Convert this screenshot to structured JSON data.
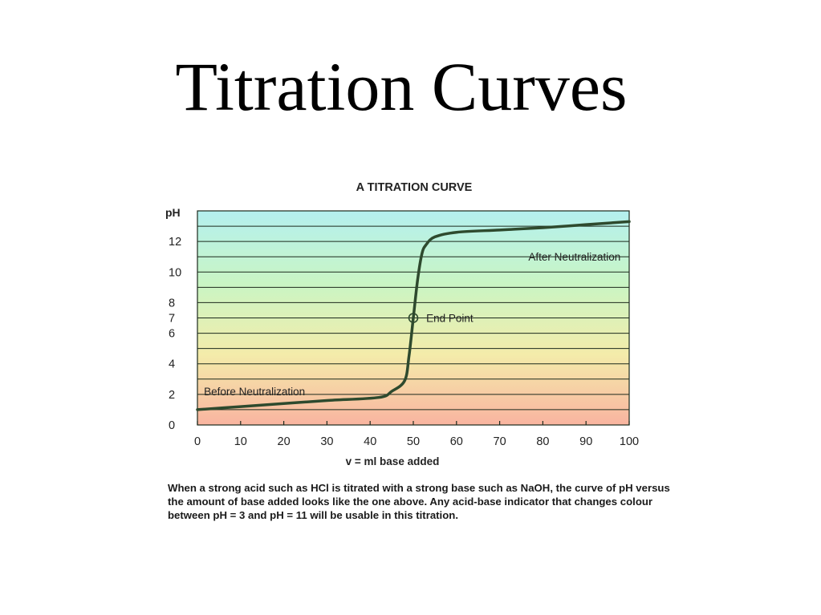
{
  "slide": {
    "title": "Titration Curves",
    "caption": "When a strong acid such as HCl is titrated with a strong base such as NaOH, the curve of pH versus the amount of base added looks like the one above. Any acid-base indicator that changes colour between pH = 3 and pH = 11 will be usable in this titration."
  },
  "chart_data": {
    "type": "line",
    "title": "A TITRATION CURVE",
    "xlabel": "v = ml base added",
    "ylabel": "pH",
    "xlim": [
      0,
      100
    ],
    "ylim": [
      0,
      14
    ],
    "x_ticks": [
      0,
      10,
      20,
      30,
      40,
      50,
      60,
      70,
      80,
      90,
      100
    ],
    "y_ticks": [
      0,
      2,
      4,
      6,
      7,
      8,
      10,
      12
    ],
    "grid": true,
    "background_gradient": [
      "#f9b4a0",
      "#f4ecaa",
      "#c9f5c4",
      "#b4f0ef"
    ],
    "line_color": "#2e4a2e",
    "series": [
      {
        "x": [
          0,
          10,
          20,
          30,
          42,
          45,
          48,
          49,
          50,
          51,
          52,
          53,
          55,
          60,
          70,
          80,
          90,
          100
        ],
        "y": [
          1.0,
          1.2,
          1.4,
          1.6,
          1.8,
          2.2,
          2.9,
          4.5,
          7.0,
          9.5,
          11.2,
          11.8,
          12.3,
          12.6,
          12.75,
          12.9,
          13.1,
          13.3
        ]
      }
    ],
    "annotations": [
      {
        "text": "Before Neutralization",
        "x": 1.5,
        "y": 2.2
      },
      {
        "text": "End Point",
        "x": 53,
        "y": 7.0
      },
      {
        "text": "After Neutralization",
        "x": 98,
        "y": 11.0
      }
    ],
    "marker": {
      "label": "End Point",
      "x": 50,
      "y": 7.0
    }
  }
}
